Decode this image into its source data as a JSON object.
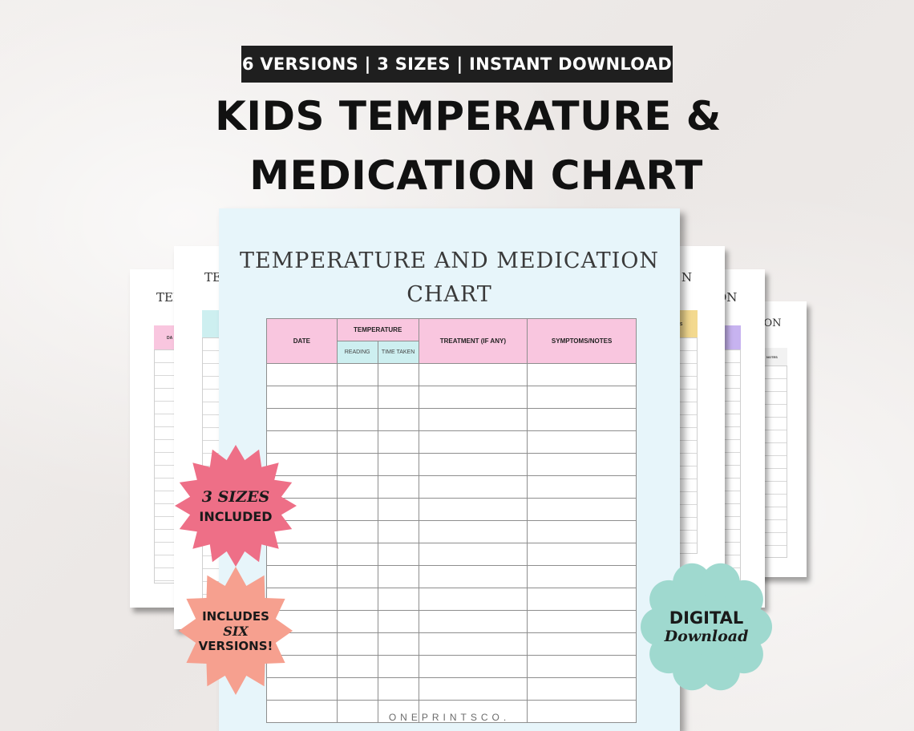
{
  "header": {
    "banner": "6 VERSIONS  |  3 SIZES  |  INSTANT DOWNLOAD",
    "headline_line1": "KIDS TEMPERATURE &",
    "headline_line2": "MEDICATION CHART"
  },
  "main_sheet": {
    "title_line1": "TEMPERATURE AND MEDICATION",
    "title_line2": "CHART",
    "columns": {
      "date": "DATE",
      "temperature": "TEMPERATURE",
      "reading": "READING",
      "time_taken": "TIME TAKEN",
      "treatment": "TREATMENT (IF ANY)",
      "symptoms": "SYMPTOMS/NOTES"
    },
    "brand": "ONEPRINTSCO.",
    "empty_rows": 16
  },
  "back_sheets": {
    "left_far": {
      "title_fragment": "TEM",
      "header_fragment": "DA",
      "accent": "#f9c6df"
    },
    "left_near": {
      "title_fragment": "TE",
      "accent": "#cdeff0"
    },
    "right_near": {
      "title_fragment": "N",
      "header_fragment": "S",
      "accent": "#f3d98f"
    },
    "right_mid": {
      "title_fragment": "ON",
      "accent": "#c7b3f0"
    },
    "right_far": {
      "title_fragment": "ATION",
      "header_fragment": "NOTES"
    }
  },
  "badges": {
    "sizes": {
      "line1": "3 SIZES",
      "line2": "INCLUDED",
      "color": "#ee6f87"
    },
    "versions": {
      "line1": "INCLUDES",
      "line2": "SIX",
      "line3": "VERSIONS!",
      "color": "#f6a08f"
    },
    "digital": {
      "line1": "DIGITAL",
      "line2": "Download",
      "color": "#9fd9cf"
    }
  }
}
